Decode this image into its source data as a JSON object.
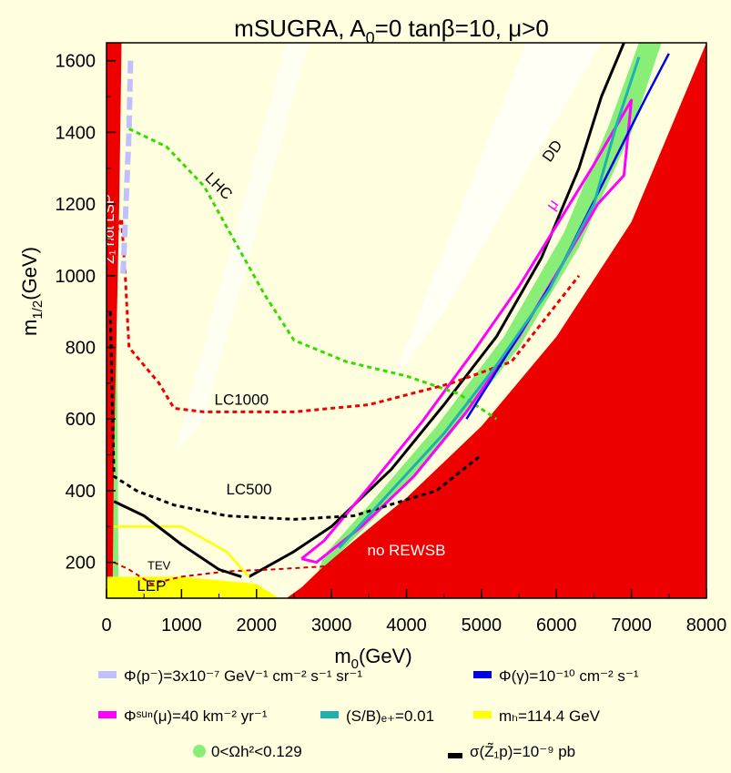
{
  "chart_data": {
    "type": "line",
    "title": "mSUGRA, A",
    "title_sub": "0",
    "title_rest": "=0  tanβ=10, μ>0",
    "xlabel": "m",
    "xlabel_sub": "0",
    "xlabel_unit": "(GeV)",
    "ylabel": "m",
    "ylabel_sub": "1/2",
    "ylabel_unit": "(GeV)",
    "xlim": [
      0,
      8000
    ],
    "ylim": [
      100,
      1650
    ],
    "xticks": [
      0,
      1000,
      2000,
      3000,
      4000,
      5000,
      6000,
      7000,
      8000
    ],
    "yticks": [
      200,
      400,
      600,
      800,
      1000,
      1200,
      1400,
      1600
    ],
    "regions": {
      "no_rewsb": {
        "label": "no REWSB",
        "color": "#ee0000",
        "points": [
          [
            2400,
            100
          ],
          [
            2600,
            130
          ],
          [
            2850,
            180
          ],
          [
            3300,
            260
          ],
          [
            4000,
            380
          ],
          [
            5000,
            580
          ],
          [
            6000,
            830
          ],
          [
            7000,
            1150
          ],
          [
            7800,
            1550
          ],
          [
            8000,
            1650
          ],
          [
            8000,
            100
          ]
        ]
      },
      "z1_not_lsp": {
        "label": "Z̃₁ not LSP",
        "color": "#ee0000",
        "points": [
          [
            0,
            100
          ],
          [
            0,
            1650
          ],
          [
            200,
            1650
          ],
          [
            170,
            1200
          ],
          [
            130,
            800
          ],
          [
            100,
            500
          ],
          [
            80,
            100
          ]
        ]
      },
      "lep": {
        "label": "LEP",
        "color": "#ffff00",
        "points": [
          [
            0,
            100
          ],
          [
            0,
            160
          ],
          [
            1000,
            160
          ],
          [
            2000,
            140
          ],
          [
            2300,
            100
          ]
        ]
      }
    },
    "series": [
      {
        "name": "DD",
        "color": "#000000",
        "points": [
          [
            1900,
            160
          ],
          [
            2500,
            230
          ],
          [
            3000,
            300
          ],
          [
            3800,
            460
          ],
          [
            4500,
            640
          ],
          [
            5200,
            830
          ],
          [
            5800,
            1050
          ],
          [
            6300,
            1300
          ],
          [
            6600,
            1500
          ],
          [
            6900,
            1650
          ]
        ]
      },
      {
        "name": "μ",
        "color": "#ff00ff",
        "points": [
          [
            2600,
            210
          ],
          [
            2900,
            260
          ],
          [
            3500,
            410
          ],
          [
            4200,
            590
          ],
          [
            4900,
            790
          ],
          [
            5500,
            970
          ],
          [
            6000,
            1140
          ],
          [
            6500,
            1310
          ],
          [
            7000,
            1490
          ],
          [
            6900,
            1280
          ],
          [
            6550,
            1200
          ],
          [
            6100,
            1040
          ],
          [
            5500,
            830
          ],
          [
            4800,
            620
          ],
          [
            4100,
            440
          ],
          [
            3400,
            300
          ],
          [
            2800,
            200
          ],
          [
            2600,
            210
          ]
        ]
      },
      {
        "name": "LHC",
        "color": "#33dd00",
        "points": [
          [
            300,
            1410
          ],
          [
            800,
            1360
          ],
          [
            1300,
            1250
          ],
          [
            1700,
            1100
          ],
          [
            2100,
            950
          ],
          [
            2500,
            820
          ],
          [
            3200,
            760
          ],
          [
            4000,
            720
          ],
          [
            4700,
            670
          ],
          [
            5200,
            600
          ]
        ]
      },
      {
        "name": "LC1000",
        "color": "#ee0000",
        "points": [
          [
            100,
            1100
          ],
          [
            200,
            1160
          ],
          [
            250,
            1000
          ],
          [
            300,
            800
          ],
          [
            700,
            700
          ],
          [
            900,
            630
          ],
          [
            1300,
            620
          ],
          [
            2500,
            620
          ],
          [
            3500,
            640
          ],
          [
            4600,
            700
          ],
          [
            5400,
            760
          ],
          [
            6300,
            1000
          ]
        ]
      },
      {
        "name": "LC500",
        "color": "#000000",
        "points": [
          [
            50,
            900
          ],
          [
            100,
            440
          ],
          [
            400,
            400
          ],
          [
            900,
            360
          ],
          [
            1600,
            330
          ],
          [
            2500,
            320
          ],
          [
            3300,
            330
          ],
          [
            4400,
            400
          ],
          [
            5000,
            500
          ]
        ]
      },
      {
        "name": "TEV",
        "color": "#cc0000",
        "points": [
          [
            100,
            200
          ],
          [
            300,
            180
          ],
          [
            600,
            140
          ],
          [
            1000,
            160
          ],
          [
            1600,
            175
          ],
          [
            2200,
            180
          ],
          [
            3000,
            190
          ]
        ]
      },
      {
        "name": "m_h=114.4 GeV",
        "color": "#ffff00",
        "points": [
          [
            100,
            300
          ],
          [
            1000,
            300
          ],
          [
            1600,
            230
          ],
          [
            1900,
            160
          ]
        ]
      },
      {
        "name": "σ",
        "color": "#000000",
        "points": [
          [
            100,
            370
          ],
          [
            500,
            330
          ],
          [
            1000,
            250
          ],
          [
            1500,
            180
          ],
          [
            1800,
            160
          ]
        ]
      },
      {
        "name": "Φ(p̄)",
        "color": "#c0c0ff",
        "points": [
          [
            320,
            1600
          ],
          [
            300,
            1400
          ],
          [
            260,
            1200
          ],
          [
            220,
            1000
          ]
        ]
      },
      {
        "name": "Φ(γ)",
        "color": "#0000ee",
        "points": [
          [
            4800,
            600
          ],
          [
            5400,
            800
          ],
          [
            6000,
            1000
          ],
          [
            6600,
            1250
          ],
          [
            7200,
            1500
          ],
          [
            7500,
            1620
          ]
        ]
      },
      {
        "name": "(S/B)",
        "color": "#20b0b0",
        "points": [
          [
            3100,
            240
          ],
          [
            3800,
            400
          ],
          [
            4500,
            560
          ],
          [
            5200,
            750
          ],
          [
            5900,
            960
          ],
          [
            6500,
            1200
          ],
          [
            6800,
            1420
          ],
          [
            7100,
            1610
          ]
        ]
      }
    ],
    "curve_labels": [
      {
        "text": "DD",
        "x": 6000,
        "y": 1340
      },
      {
        "text": "μ",
        "x": 6000,
        "y": 1190
      },
      {
        "text": "LHC",
        "x": 1450,
        "y": 1240
      },
      {
        "text": "LC1000",
        "x": 1800,
        "y": 640
      },
      {
        "text": "LC500",
        "x": 1900,
        "y": 390
      },
      {
        "text": "TEV",
        "x": 700,
        "y": 180
      },
      {
        "text": "LEP",
        "x": 600,
        "y": 120
      },
      {
        "text": "no REWSB",
        "x": 4000,
        "y": 220
      }
    ]
  },
  "legend": {
    "row1": [
      {
        "id": "pbar",
        "color": "#c0c0ff",
        "text": "Φ(p⁻)=3x10⁻⁷ GeV⁻¹ cm⁻² s⁻¹ sr⁻¹"
      },
      {
        "id": "gamma",
        "color": "#0000ee",
        "text": "Φ(γ)=10⁻¹⁰ cm⁻² s⁻¹"
      }
    ],
    "row2": [
      {
        "id": "mu",
        "color": "#ff00ff",
        "text": "Φˢᵘⁿ(μ)=40 km⁻² yr⁻¹"
      },
      {
        "id": "sb",
        "color": "#20b0b0",
        "text": "(S/B)ₑ₊=0.01"
      },
      {
        "id": "mh",
        "color": "#ffff00",
        "text": "mₕ=114.4 GeV"
      }
    ],
    "row3": [
      {
        "id": "omega",
        "color": "#88ee77",
        "text": "0<Ωh²<0.129"
      },
      {
        "id": "sigma",
        "color": "#000000",
        "text": "σ(Z̃₁p)=10⁻⁹ pb"
      }
    ]
  }
}
